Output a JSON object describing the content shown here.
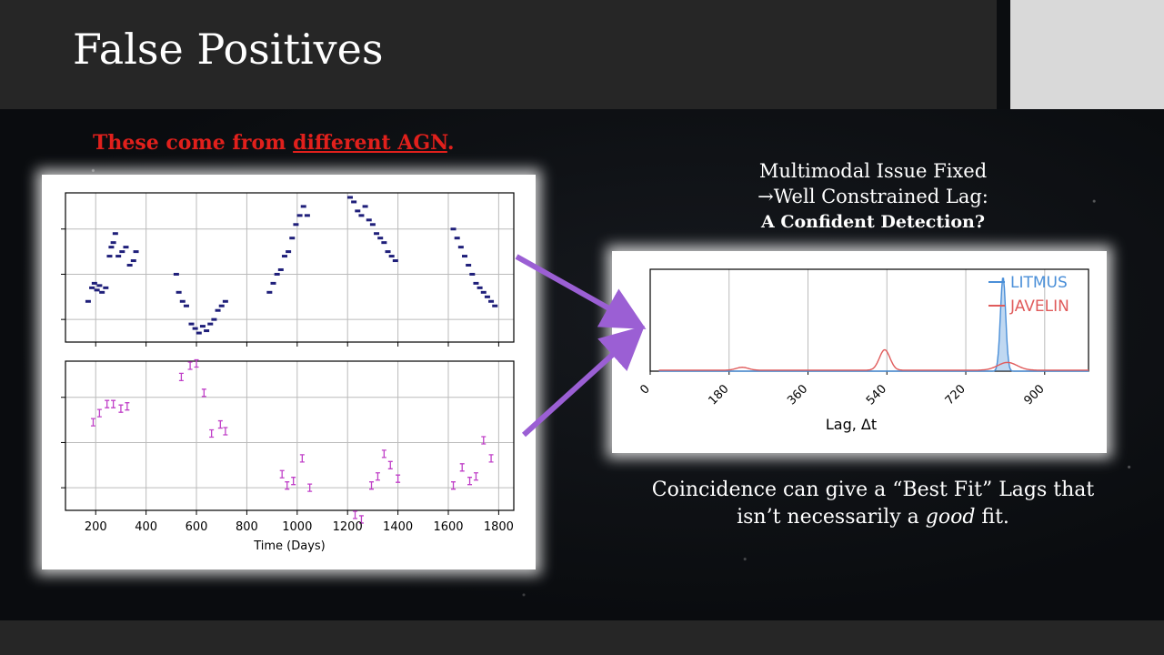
{
  "slide": {
    "title": "False Positives",
    "note_prefix": "These come from ",
    "note_emph": "different AGN",
    "note_suffix": ".",
    "right_caption_line1": "Multimodal Issue Fixed",
    "right_caption_line2": "→Well Constrained Lag:",
    "right_caption_line3": "A Confident Detection?",
    "bottom_caption_line1": "Coincidence can give a “Best Fit” Lags that",
    "bottom_caption_pre": "isn’t necessarily a ",
    "bottom_caption_emph": "good",
    "bottom_caption_post": " fit.",
    "colors": {
      "note": "#e0201c",
      "arrow": "#9b5fd4",
      "bar": "#262626"
    }
  },
  "chart_data": [
    {
      "type": "scatter",
      "panel": "top",
      "xlabel": "",
      "xlim": [
        80,
        1860
      ],
      "ylim": [
        0,
        3.3
      ],
      "yticks": [
        0.5,
        1.5,
        2.5
      ],
      "color": "#1f1f7a",
      "points": [
        [
          170,
          0.9
        ],
        [
          185,
          1.2
        ],
        [
          195,
          1.3
        ],
        [
          205,
          1.15
        ],
        [
          215,
          1.25
        ],
        [
          225,
          1.1
        ],
        [
          240,
          1.2
        ],
        [
          255,
          1.9
        ],
        [
          262,
          2.1
        ],
        [
          270,
          2.2
        ],
        [
          278,
          2.4
        ],
        [
          290,
          1.9
        ],
        [
          305,
          2.0
        ],
        [
          320,
          2.1
        ],
        [
          335,
          1.7
        ],
        [
          350,
          1.8
        ],
        [
          360,
          2.0
        ],
        [
          520,
          1.5
        ],
        [
          530,
          1.1
        ],
        [
          545,
          0.9
        ],
        [
          560,
          0.8
        ],
        [
          580,
          0.4
        ],
        [
          595,
          0.3
        ],
        [
          610,
          0.2
        ],
        [
          625,
          0.35
        ],
        [
          640,
          0.25
        ],
        [
          655,
          0.4
        ],
        [
          670,
          0.5
        ],
        [
          685,
          0.7
        ],
        [
          700,
          0.8
        ],
        [
          715,
          0.9
        ],
        [
          890,
          1.1
        ],
        [
          905,
          1.3
        ],
        [
          920,
          1.5
        ],
        [
          935,
          1.6
        ],
        [
          950,
          1.9
        ],
        [
          965,
          2.0
        ],
        [
          980,
          2.3
        ],
        [
          995,
          2.6
        ],
        [
          1010,
          2.8
        ],
        [
          1025,
          3.0
        ],
        [
          1040,
          2.8
        ],
        [
          1210,
          3.2
        ],
        [
          1225,
          3.1
        ],
        [
          1240,
          2.9
        ],
        [
          1255,
          2.8
        ],
        [
          1270,
          3.0
        ],
        [
          1285,
          2.7
        ],
        [
          1300,
          2.6
        ],
        [
          1315,
          2.4
        ],
        [
          1330,
          2.3
        ],
        [
          1345,
          2.2
        ],
        [
          1360,
          2.0
        ],
        [
          1375,
          1.9
        ],
        [
          1390,
          1.8
        ],
        [
          1620,
          2.5
        ],
        [
          1635,
          2.3
        ],
        [
          1650,
          2.1
        ],
        [
          1665,
          1.9
        ],
        [
          1680,
          1.7
        ],
        [
          1695,
          1.5
        ],
        [
          1710,
          1.3
        ],
        [
          1725,
          1.2
        ],
        [
          1740,
          1.1
        ],
        [
          1755,
          1.0
        ],
        [
          1770,
          0.9
        ],
        [
          1785,
          0.8
        ]
      ]
    },
    {
      "type": "scatter",
      "panel": "bottom",
      "xlabel": "Time (Days)",
      "xlim": [
        80,
        1860
      ],
      "xticks": [
        200,
        400,
        600,
        800,
        1000,
        1200,
        1400,
        1600,
        1800
      ],
      "ylim": [
        0,
        3.3
      ],
      "yticks": [
        0.5,
        1.5,
        2.5
      ],
      "color": "#c040c8",
      "points": [
        [
          190,
          1.95
        ],
        [
          215,
          2.15
        ],
        [
          245,
          2.35
        ],
        [
          270,
          2.35
        ],
        [
          300,
          2.25
        ],
        [
          325,
          2.3
        ],
        [
          540,
          2.95
        ],
        [
          575,
          3.2
        ],
        [
          600,
          3.25
        ],
        [
          630,
          2.6
        ],
        [
          660,
          1.7
        ],
        [
          695,
          1.9
        ],
        [
          715,
          1.75
        ],
        [
          940,
          0.8
        ],
        [
          960,
          0.55
        ],
        [
          985,
          0.65
        ],
        [
          1020,
          1.15
        ],
        [
          1050,
          0.5
        ],
        [
          1230,
          -0.1
        ],
        [
          1255,
          -0.2
        ],
        [
          1295,
          0.55
        ],
        [
          1320,
          0.75
        ],
        [
          1345,
          1.25
        ],
        [
          1370,
          1.0
        ],
        [
          1400,
          0.7
        ],
        [
          1620,
          0.55
        ],
        [
          1655,
          0.95
        ],
        [
          1685,
          0.65
        ],
        [
          1710,
          0.75
        ],
        [
          1740,
          1.55
        ],
        [
          1770,
          1.15
        ]
      ]
    },
    {
      "type": "line",
      "panel": "lag",
      "xlabel": "Lag, Δt",
      "xticks": [
        0,
        180,
        360,
        540,
        720,
        900
      ],
      "xlim": [
        0,
        1000
      ],
      "ylim": [
        0,
        1.05
      ],
      "series": [
        {
          "name": "LITMUS",
          "color": "#4a8fd8",
          "fill": true,
          "peaks": [
            {
              "center": 805,
              "width": 6,
              "height": 0.97
            }
          ],
          "baseline": 0.0
        },
        {
          "name": "JAVELIN",
          "color": "#e05b5b",
          "fill": false,
          "peaks": [
            {
              "center": 210,
              "width": 14,
              "height": 0.03
            },
            {
              "center": 535,
              "width": 12,
              "height": 0.21
            },
            {
              "center": 815,
              "width": 22,
              "height": 0.08
            }
          ],
          "baseline": 0.01
        }
      ]
    }
  ]
}
